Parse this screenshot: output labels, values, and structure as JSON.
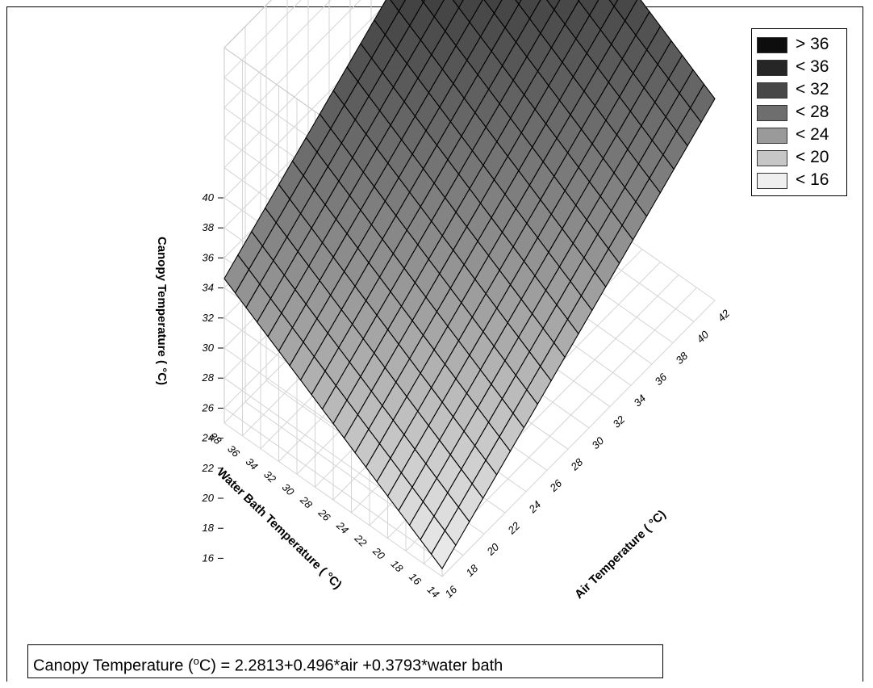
{
  "chart_data": {
    "type": "surface",
    "z_label": "Canopy Temperature (  °C)",
    "x_label": "Air Temperature (  °C)",
    "y_label": "Water Bath Temperature (   °C)",
    "x_ticks": [
      "16",
      "18",
      "20",
      "22",
      "24",
      "26",
      "28",
      "30",
      "32",
      "34",
      "36",
      "38",
      "40",
      "42"
    ],
    "y_ticks": [
      "14",
      "16",
      "18",
      "20",
      "22",
      "24",
      "26",
      "28",
      "30",
      "32",
      "34",
      "36",
      "38"
    ],
    "z_ticks": [
      "16",
      "18",
      "20",
      "22",
      "24",
      "26",
      "28",
      "30",
      "32",
      "34",
      "36",
      "38",
      "40"
    ],
    "x_range": [
      16,
      42
    ],
    "y_range": [
      14,
      38
    ],
    "z_range": [
      15,
      40
    ],
    "equation": {
      "intercept": 2.2813,
      "air_coef": 0.496,
      "water_coef": 0.3793,
      "text_before": "Canopy Temperature (",
      "sup": "o",
      "text_after": "C) = 2.2813+0.496*air +0.3793*water bath"
    },
    "surface_corners": [
      {
        "air": 16,
        "water": 14,
        "canopy": 15.5
      },
      {
        "air": 42,
        "water": 14,
        "canopy": 28.4
      },
      {
        "air": 16,
        "water": 38,
        "canopy": 24.6
      },
      {
        "air": 42,
        "water": 38,
        "canopy": 37.5
      }
    ],
    "mesh_divisions": 20,
    "legend": [
      {
        "label": "> 36",
        "color": "#0d0d0d"
      },
      {
        "label": "< 36",
        "color": "#262626"
      },
      {
        "label": "< 32",
        "color": "#474747"
      },
      {
        "label": "< 28",
        "color": "#6e6e6e"
      },
      {
        "label": "< 24",
        "color": "#9a9a9a"
      },
      {
        "label": "< 20",
        "color": "#c6c6c6"
      },
      {
        "label": "< 16",
        "color": "#efefef"
      }
    ],
    "legend_position": "top-right",
    "grid": true
  }
}
